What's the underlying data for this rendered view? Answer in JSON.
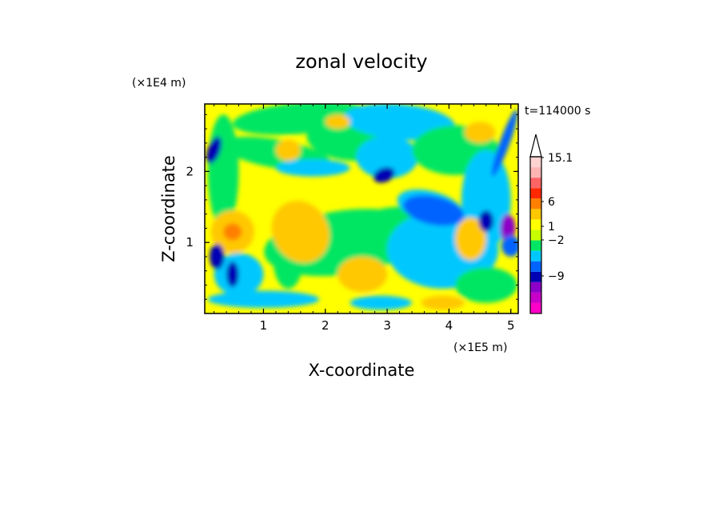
{
  "chart_data": {
    "type": "heatmap",
    "title": "zonal velocity",
    "xlabel": "X-coordinate",
    "ylabel": "Z-coordinate",
    "x_scale_label": "(×1E5 m)",
    "y_scale_label": "(×1E4 m)",
    "time_label": "t=114000 s",
    "xlim": [
      0.05,
      5.12
    ],
    "ylim": [
      0,
      2.95
    ],
    "x_ticks": [
      "1",
      "2",
      "3",
      "4",
      "5"
    ],
    "y_ticks": [
      "1",
      "2"
    ],
    "colorbar": {
      "labels": [
        "15.1",
        "6",
        "1",
        "−2",
        "−9"
      ],
      "label_values": [
        15.1,
        6,
        1,
        -2,
        -9
      ],
      "band_colors": [
        "#ff00c8",
        "#c800c8",
        "#8c00c8",
        "#0000b4",
        "#0064ff",
        "#00c8ff",
        "#00e664",
        "#c8ff00",
        "#ffff00",
        "#ffc800",
        "#ff8000",
        "#ff2800",
        "#ff6464",
        "#ffb4b4",
        "#ffd2d2"
      ],
      "arrow_top": true
    },
    "field_colors": {
      "green": "#00e664",
      "yellow": "#ffff00",
      "cyan": "#00c8ff",
      "orange": "#ffc800",
      "darkorange": "#ff8000",
      "blue": "#0000b4",
      "lightblue": "#0064ff",
      "purple": "#8c00c8"
    },
    "grid": false
  }
}
